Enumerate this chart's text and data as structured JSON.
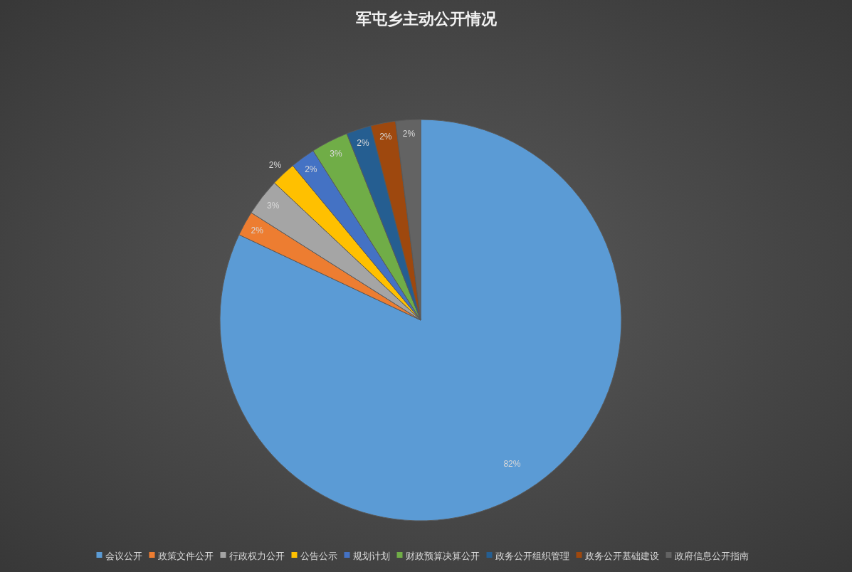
{
  "chart_data": {
    "type": "pie",
    "title": "军屯乡主动公开情况",
    "categories": [
      "会议公开",
      "政策文件公开",
      "行政权力公开",
      "公告公示",
      "规划计划",
      "财政预算决算公开",
      "政务公开组织管理",
      "政务公开基础建设",
      "政府信息公开指南"
    ],
    "values": [
      82,
      2,
      3,
      2,
      2,
      3,
      2,
      2,
      2
    ],
    "value_labels": [
      "82%",
      "2%",
      "3%",
      "2%",
      "2%",
      "3%",
      "2%",
      "2%",
      "2%"
    ],
    "colors": [
      "#5b9bd5",
      "#ed7d31",
      "#a5a5a5",
      "#ffc000",
      "#4472c4",
      "#70ad47",
      "#255e91",
      "#9e480e",
      "#636363"
    ],
    "legend": "bottom"
  }
}
